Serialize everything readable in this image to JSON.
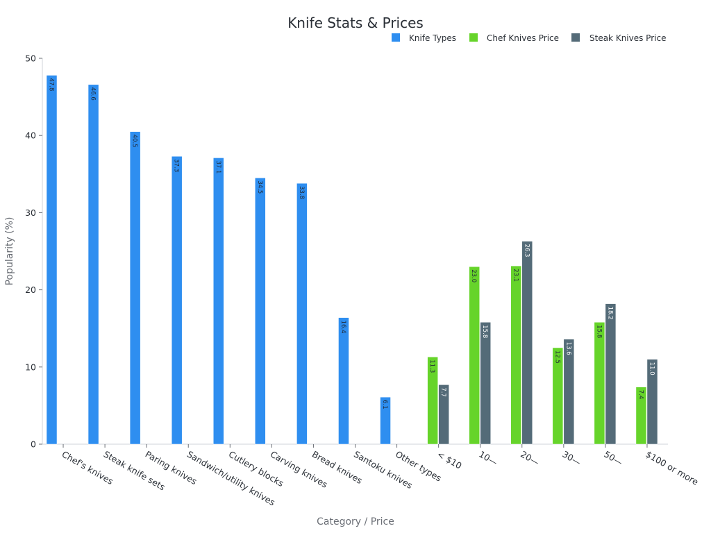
{
  "chart_data": {
    "type": "bar",
    "title": "Knife Stats & Prices",
    "xlabel": "Category / Price",
    "ylabel": "Popularity (%)",
    "ylim": [
      0,
      50
    ],
    "yticks": [
      "0",
      "10",
      "20",
      "30",
      "40",
      "50"
    ],
    "grid": false,
    "legend_position": "top-right",
    "categories": [
      "Chef's knives",
      "Steak knife sets",
      "Paring knives",
      "Sandwich/utility knives",
      "Cutlery blocks",
      "Carving knives",
      "Bread knives",
      "Santoku knives",
      "Other types",
      "< $10",
      "10—",
      "20—",
      "30—",
      "50—",
      "$100 or more"
    ],
    "series": [
      {
        "name": "Knife Types",
        "color": "#2e8ef0",
        "values": [
          47.8,
          46.6,
          40.5,
          37.3,
          37.1,
          34.5,
          33.8,
          16.4,
          6.1,
          null,
          null,
          null,
          null,
          null,
          null
        ]
      },
      {
        "name": "Chef Knives Price",
        "color": "#66d42a",
        "values": [
          null,
          null,
          null,
          null,
          null,
          null,
          null,
          null,
          null,
          11.3,
          23.0,
          23.1,
          12.5,
          15.8,
          7.4
        ]
      },
      {
        "name": "Steak Knives Price",
        "color": "#546b78",
        "values": [
          null,
          null,
          null,
          null,
          null,
          null,
          null,
          null,
          null,
          7.7,
          15.8,
          26.3,
          13.6,
          18.2,
          11.0
        ]
      }
    ],
    "data_labels": {
      "Knife Types": [
        "47.8",
        "46.6",
        "40.5",
        "37.3",
        "37.1",
        "34.5",
        "33.8",
        "16.4",
        "6.1",
        "",
        "",
        "",
        "",
        "",
        ""
      ],
      "Chef Knives Price": [
        "",
        "",
        "",
        "",
        "",
        "",
        "",
        "",
        "",
        "11.3",
        "23.0",
        "23.1",
        "12.5",
        "15.8",
        "7.4"
      ],
      "Steak Knives Price": [
        "",
        "",
        "",
        "",
        "",
        "",
        "",
        "",
        "",
        "7.7",
        "15.8",
        "26.3",
        "13.6",
        "18.2",
        "11.0"
      ]
    }
  }
}
